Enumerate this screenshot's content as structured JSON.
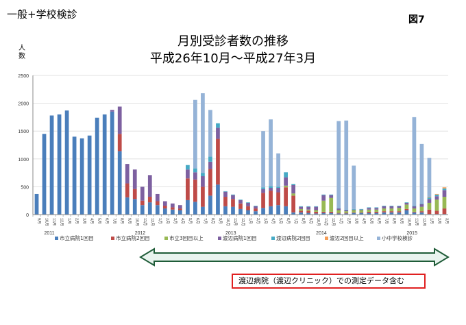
{
  "header": {
    "top_left": "一般+学校検診",
    "figure_label": "図7",
    "title": "月別受診者数の推移",
    "subtitle": "平成26年10月～平成27年3月"
  },
  "note": "渡辺病院（渡辺クリニック）での測定データ含む",
  "chart_data": {
    "type": "bar",
    "stacked": true,
    "ylabel": "人数",
    "ylim": [
      0,
      2500
    ],
    "yticks": [
      0,
      500,
      1000,
      1500,
      2000,
      2500
    ],
    "grid": true,
    "legend_position": "bottom",
    "year_labels": [
      {
        "text": "2011",
        "index": 0
      },
      {
        "text": "2012",
        "index": 12
      },
      {
        "text": "2013",
        "index": 24
      },
      {
        "text": "2014",
        "index": 36
      },
      {
        "text": "2015",
        "index": 48
      }
    ],
    "categories": [
      "9月",
      "10月",
      "11月",
      "12月",
      "1月",
      "2月",
      "3月",
      "4月",
      "5月",
      "6月",
      "7月",
      "8月",
      "9月",
      "10月",
      "11月",
      "12月",
      "1月",
      "2月",
      "3月",
      "4月",
      "5月",
      "6月",
      "7月",
      "8月",
      "9月",
      "10月",
      "11月",
      "12月",
      "1月",
      "2月",
      "3月",
      "4月",
      "5月",
      "6月",
      "7月",
      "8月",
      "9月",
      "10月",
      "11月",
      "12月",
      "1月",
      "2月",
      "3月",
      "4月",
      "5月",
      "6月",
      "7月",
      "8月",
      "9月",
      "10月",
      "11月",
      "12月",
      "1月",
      "2月",
      "3月"
    ],
    "series": [
      {
        "name": "市立病院1回目",
        "color": "#4a7ebb",
        "values": [
          370,
          1450,
          1780,
          1800,
          1870,
          1400,
          1370,
          1420,
          1740,
          1800,
          1850,
          1140,
          310,
          280,
          170,
          220,
          170,
          110,
          90,
          80,
          260,
          230,
          140,
          340,
          540,
          150,
          140,
          100,
          80,
          60,
          120,
          150,
          170,
          150,
          40,
          40,
          30,
          20,
          30,
          30,
          20,
          20,
          30,
          30,
          30,
          30,
          40,
          40,
          40,
          80,
          40,
          40,
          10,
          10,
          10
        ]
      },
      {
        "name": "市立病院2回目",
        "color": "#be4b48",
        "values": [
          0,
          0,
          0,
          0,
          0,
          0,
          0,
          0,
          0,
          0,
          0,
          310,
          250,
          180,
          80,
          100,
          70,
          50,
          40,
          30,
          390,
          400,
          360,
          480,
          820,
          170,
          140,
          100,
          70,
          50,
          270,
          280,
          230,
          340,
          300,
          30,
          40,
          30,
          20,
          20,
          10,
          10,
          10,
          10,
          20,
          20,
          20,
          20,
          20,
          20,
          10,
          20,
          80,
          60,
          100
        ]
      },
      {
        "name": "市立3回目以上",
        "color": "#98b954",
        "values": [
          0,
          0,
          0,
          0,
          0,
          0,
          0,
          0,
          0,
          0,
          0,
          0,
          0,
          0,
          0,
          0,
          0,
          0,
          0,
          0,
          0,
          0,
          0,
          0,
          0,
          0,
          0,
          0,
          0,
          0,
          0,
          0,
          0,
          30,
          40,
          30,
          20,
          30,
          200,
          250,
          50,
          30,
          40,
          40,
          40,
          40,
          50,
          50,
          60,
          80,
          60,
          80,
          120,
          200,
          210
        ]
      },
      {
        "name": "渡辺病院1回目",
        "color": "#7d60a0",
        "values": [
          0,
          0,
          0,
          0,
          0,
          0,
          0,
          0,
          0,
          0,
          30,
          490,
          350,
          350,
          250,
          390,
          130,
          80,
          70,
          60,
          160,
          130,
          190,
          130,
          200,
          90,
          70,
          60,
          60,
          40,
          70,
          50,
          80,
          150,
          150,
          40,
          50,
          60,
          100,
          50,
          30,
          20,
          10,
          10,
          30,
          30,
          40,
          40,
          30,
          30,
          40,
          50,
          70,
          60,
          120
        ]
      },
      {
        "name": "渡辺病院2回目",
        "color": "#46aac5",
        "values": [
          0,
          0,
          0,
          0,
          0,
          0,
          0,
          0,
          0,
          0,
          0,
          0,
          0,
          0,
          0,
          0,
          0,
          0,
          0,
          0,
          80,
          70,
          60,
          90,
          80,
          10,
          10,
          10,
          10,
          10,
          30,
          30,
          20,
          90,
          20,
          10,
          10,
          10,
          10,
          10,
          10,
          10,
          10,
          10,
          10,
          10,
          10,
          10,
          10,
          10,
          10,
          10,
          30,
          30,
          30
        ]
      },
      {
        "name": "渡辺2回目以上",
        "color": "#f59d56",
        "values": [
          0,
          0,
          0,
          0,
          0,
          0,
          0,
          0,
          0,
          0,
          0,
          0,
          0,
          0,
          0,
          0,
          0,
          0,
          0,
          0,
          0,
          0,
          0,
          0,
          0,
          0,
          0,
          0,
          0,
          0,
          0,
          0,
          0,
          0,
          0,
          0,
          0,
          0,
          0,
          0,
          0,
          0,
          0,
          0,
          0,
          0,
          0,
          0,
          0,
          0,
          0,
          0,
          10,
          10,
          20
        ]
      },
      {
        "name": "小中学校検診",
        "color": "#95b3d7",
        "values": [
          0,
          0,
          0,
          0,
          0,
          0,
          0,
          0,
          0,
          0,
          0,
          0,
          0,
          0,
          0,
          0,
          0,
          0,
          0,
          0,
          0,
          1230,
          1430,
          840,
          0,
          0,
          0,
          0,
          0,
          0,
          1010,
          1200,
          600,
          0,
          0,
          0,
          0,
          0,
          0,
          0,
          1560,
          1600,
          780,
          0,
          0,
          0,
          0,
          0,
          0,
          0,
          1590,
          1070,
          700,
          0,
          0
        ]
      }
    ]
  }
}
